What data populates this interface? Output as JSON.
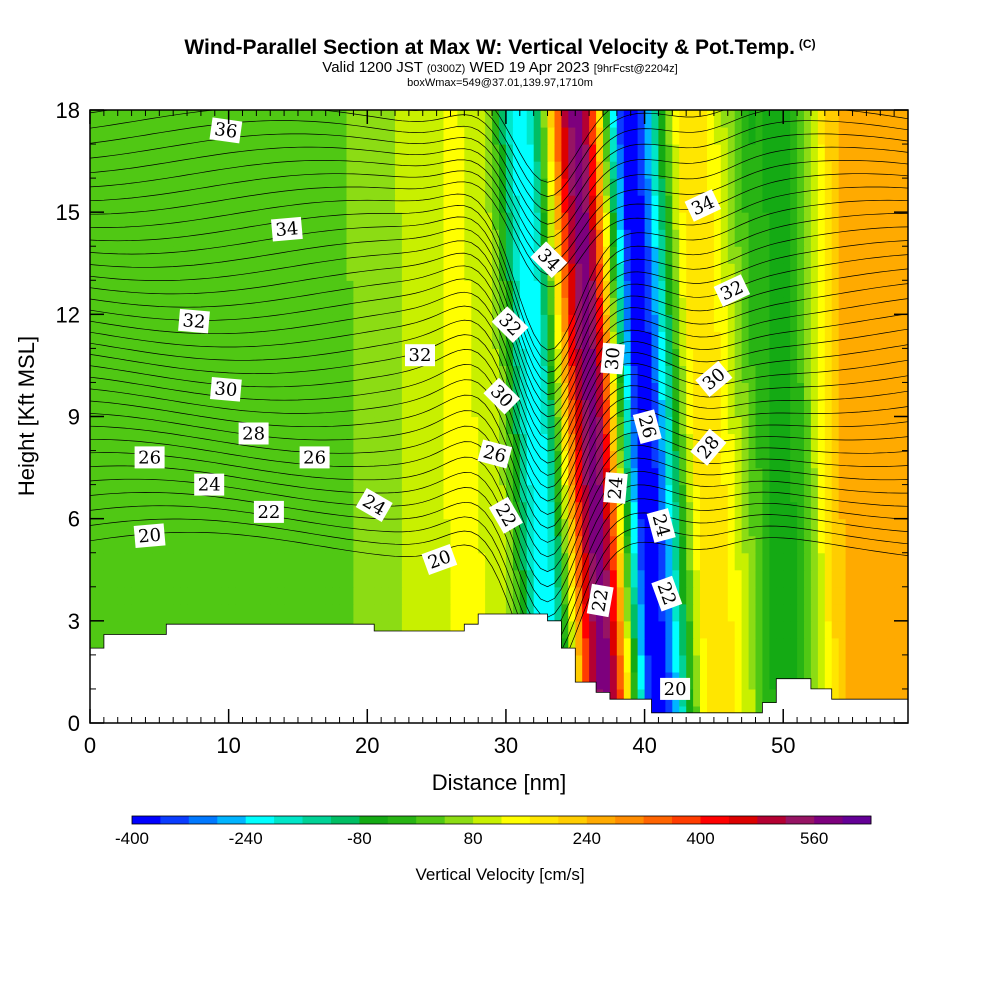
{
  "header": {
    "title": "Wind-Parallel Section at Max W: Vertical Velocity & Pot.Temp.",
    "title_sup": "(C)",
    "valid_prefix": "Valid 1200 JST",
    "valid_utc": "(0300Z)",
    "valid_date": "WED 19 Apr 2023",
    "forecast": "[9hrFcst@2204z]",
    "box_info": "boxWmax=549@37.01,139.97,1710m"
  },
  "chart_data": {
    "type": "heatmap",
    "title": "Wind-Parallel Section at Max W: Vertical Velocity & Pot.Temp.",
    "xlabel": "Distance [nm]",
    "ylabel": "Height [Kft MSL]",
    "xlim": [
      0,
      59
    ],
    "ylim": [
      0,
      18
    ],
    "x_ticks": [
      0,
      10,
      20,
      30,
      40,
      50
    ],
    "y_ticks": [
      0,
      3,
      6,
      9,
      12,
      15,
      18
    ],
    "colorbar": {
      "label": "Vertical Velocity [cm/s]",
      "tick_labels": [
        -400,
        -240,
        -80,
        80,
        240,
        400,
        560
      ],
      "min": -400,
      "max": 640,
      "colors": [
        "#0000ff",
        "#0a3cff",
        "#0078ff",
        "#00b4ff",
        "#00ffff",
        "#00e6c8",
        "#00d296",
        "#00be64",
        "#14aa14",
        "#28b414",
        "#50c814",
        "#8cdc14",
        "#c8f000",
        "#ffff00",
        "#ffe600",
        "#ffcd00",
        "#ffaa00",
        "#ff8c00",
        "#ff6400",
        "#ff3c00",
        "#ff0000",
        "#dc0000",
        "#b40032",
        "#961464",
        "#7d007d",
        "#640096"
      ]
    },
    "w_columns": [
      {
        "x": 8,
        "w": 10
      },
      {
        "x": 19,
        "w": 40
      },
      {
        "x": 24,
        "w": 90
      },
      {
        "x": 27,
        "w": 140
      },
      {
        "x": 29.5,
        "w": 90
      },
      {
        "x": 32.5,
        "w": -240
      },
      {
        "x": 36.5,
        "w": 580
      },
      {
        "x": 40.2,
        "w": -400
      },
      {
        "x": 44.5,
        "w": 200
      },
      {
        "x": 50,
        "w": -60
      },
      {
        "x": 55,
        "w": 260
      }
    ],
    "terrain_kft": [
      [
        0,
        2.2
      ],
      [
        1,
        2.6
      ],
      [
        5.5,
        2.9
      ],
      [
        20.5,
        2.7
      ],
      [
        27,
        2.9
      ],
      [
        28,
        3.2
      ],
      [
        32,
        3.2
      ],
      [
        33,
        3.0
      ],
      [
        34,
        2.2
      ],
      [
        35,
        1.2
      ],
      [
        36.5,
        0.9
      ],
      [
        37.5,
        0.7
      ],
      [
        40.5,
        0.3
      ],
      [
        47,
        0.3
      ],
      [
        48.5,
        0.6
      ],
      [
        49.5,
        1.3
      ],
      [
        51,
        1.3
      ],
      [
        52,
        1.0
      ],
      [
        53.5,
        0.7
      ],
      [
        59,
        0.7
      ]
    ],
    "theta_contours": {
      "levels_K": [
        20,
        22,
        24,
        26,
        28,
        30,
        32,
        34,
        36
      ],
      "labels": [
        {
          "text": "36",
          "x": 9.8,
          "y": 17.4,
          "rot": 8
        },
        {
          "text": "34",
          "x": 14.2,
          "y": 14.5,
          "rot": -5
        },
        {
          "text": "34",
          "x": 33.1,
          "y": 13.6,
          "rot": 45
        },
        {
          "text": "34",
          "x": 44.2,
          "y": 15.2,
          "rot": -25
        },
        {
          "text": "32",
          "x": 7.5,
          "y": 11.8,
          "rot": 5
        },
        {
          "text": "32",
          "x": 23.8,
          "y": 10.8,
          "rot": 0
        },
        {
          "text": "32",
          "x": 30.3,
          "y": 11.7,
          "rot": 45
        },
        {
          "text": "32",
          "x": 46.3,
          "y": 12.7,
          "rot": -25
        },
        {
          "text": "30",
          "x": 9.8,
          "y": 9.8,
          "rot": 5
        },
        {
          "text": "30",
          "x": 29.7,
          "y": 9.6,
          "rot": 45
        },
        {
          "text": "30",
          "x": 37.7,
          "y": 10.7,
          "rot": -85
        },
        {
          "text": "30",
          "x": 45,
          "y": 10.1,
          "rot": -40
        },
        {
          "text": "28",
          "x": 11.8,
          "y": 8.5,
          "rot": 0
        },
        {
          "text": "28",
          "x": 44.6,
          "y": 8.1,
          "rot": -50
        },
        {
          "text": "26",
          "x": 4.3,
          "y": 7.8,
          "rot": 0
        },
        {
          "text": "26",
          "x": 16.2,
          "y": 7.8,
          "rot": 0
        },
        {
          "text": "26",
          "x": 29.2,
          "y": 7.9,
          "rot": 15
        },
        {
          "text": "26",
          "x": 40.2,
          "y": 8.7,
          "rot": 75
        },
        {
          "text": "24",
          "x": 8.6,
          "y": 7.0,
          "rot": 0
        },
        {
          "text": "24",
          "x": 20.5,
          "y": 6.4,
          "rot": 30
        },
        {
          "text": "24",
          "x": 37.9,
          "y": 6.9,
          "rot": -85
        },
        {
          "text": "24",
          "x": 41.2,
          "y": 5.8,
          "rot": 75
        },
        {
          "text": "22",
          "x": 12.9,
          "y": 6.2,
          "rot": 0
        },
        {
          "text": "22",
          "x": 30,
          "y": 6.1,
          "rot": 60
        },
        {
          "text": "22",
          "x": 36.8,
          "y": 3.6,
          "rot": -80
        },
        {
          "text": "22",
          "x": 41.6,
          "y": 3.8,
          "rot": 70
        },
        {
          "text": "20",
          "x": 4.3,
          "y": 5.5,
          "rot": -5
        },
        {
          "text": "20",
          "x": 25.2,
          "y": 4.8,
          "rot": -20
        },
        {
          "text": "20",
          "x": 42.2,
          "y": 1.0,
          "rot": 0
        }
      ]
    }
  }
}
